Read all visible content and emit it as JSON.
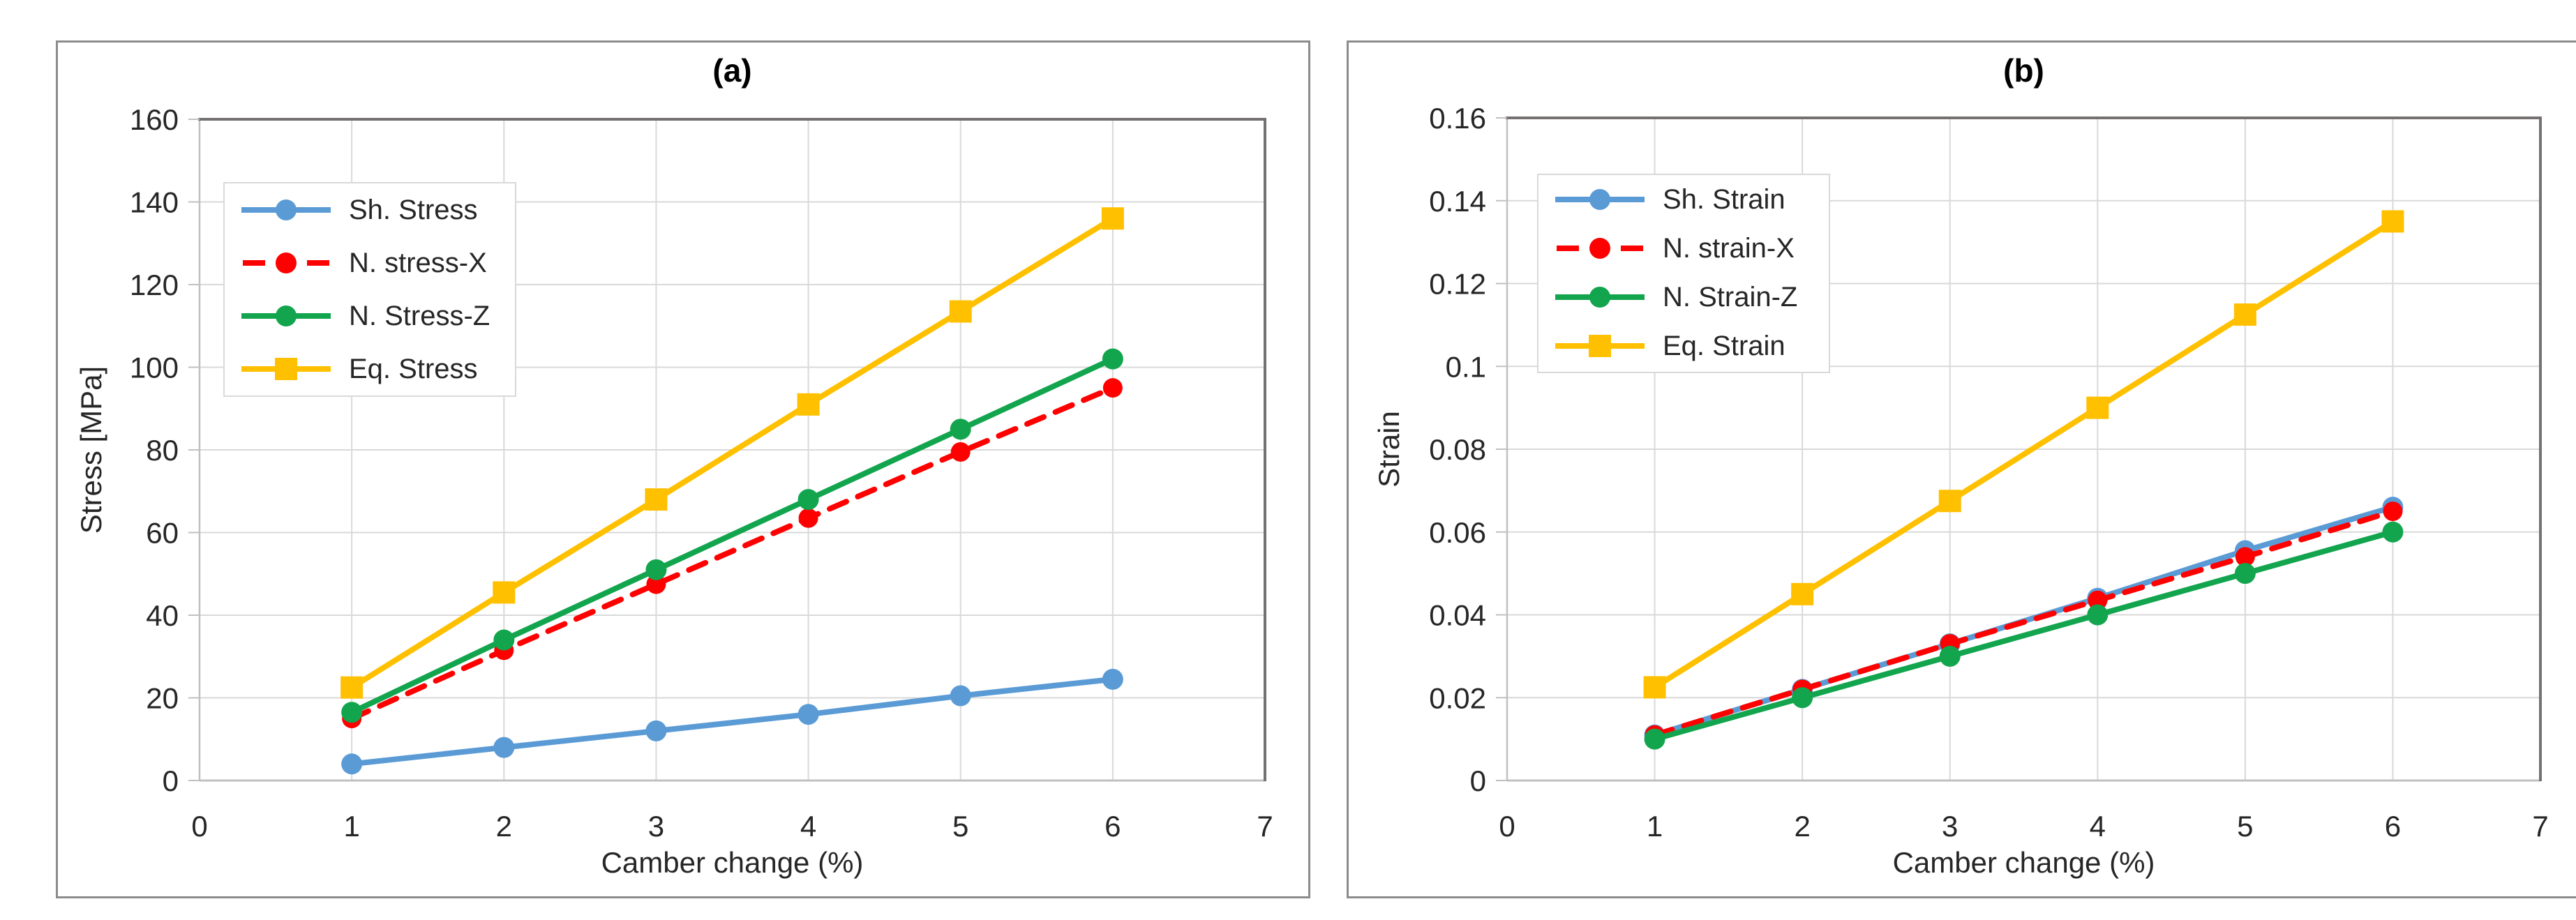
{
  "chart_data": [
    {
      "type": "line",
      "title": "(a)",
      "xlabel": "Camber change (%)",
      "ylabel": "Stress [MPa]",
      "xlim": [
        0,
        7
      ],
      "ylim": [
        0,
        160
      ],
      "x_ticks": [
        "0",
        "1",
        "2",
        "3",
        "4",
        "5",
        "6",
        "7"
      ],
      "y_ticks": [
        "0",
        "20",
        "40",
        "60",
        "80",
        "100",
        "120",
        "140",
        "160"
      ],
      "grid": true,
      "legend_position": "upper-left",
      "x": [
        1,
        2,
        3,
        4,
        5,
        6
      ],
      "series": [
        {
          "name": "Sh. Stress",
          "color": "#5B9BD5",
          "marker": "circle",
          "line": "solid",
          "values": [
            4,
            8,
            12,
            16,
            20.5,
            24.5
          ]
        },
        {
          "name": "N. stress-X",
          "color": "#FF0000",
          "marker": "circle",
          "line": "dashed",
          "values": [
            15,
            31.5,
            47.5,
            63.5,
            79.5,
            95
          ]
        },
        {
          "name": "N. Stress-Z",
          "color": "#12A54E",
          "marker": "circle",
          "line": "solid",
          "values": [
            16.5,
            34,
            51,
            68,
            85,
            102
          ]
        },
        {
          "name": "Eq. Stress",
          "color": "#FFC000",
          "marker": "square",
          "line": "solid",
          "values": [
            22.5,
            45.5,
            68,
            91,
            113.5,
            136
          ]
        }
      ]
    },
    {
      "type": "line",
      "title": "(b)",
      "xlabel": "Camber change (%)",
      "ylabel": "Strain",
      "xlim": [
        0,
        7
      ],
      "ylim": [
        0,
        0.16
      ],
      "x_ticks": [
        "0",
        "1",
        "2",
        "3",
        "4",
        "5",
        "6",
        "7"
      ],
      "y_ticks": [
        "0",
        "0.02",
        "0.04",
        "0.06",
        "0.08",
        "0.1",
        "0.12",
        "0.14",
        "0.16"
      ],
      "grid": true,
      "legend_position": "upper-left",
      "x": [
        1,
        2,
        3,
        4,
        5,
        6
      ],
      "series": [
        {
          "name": "Sh. Strain",
          "color": "#5B9BD5",
          "marker": "circle",
          "line": "solid",
          "values": [
            0.011,
            0.022,
            0.033,
            0.044,
            0.0555,
            0.066
          ]
        },
        {
          "name": "N. strain-X",
          "color": "#FF0000",
          "marker": "circle",
          "line": "dashed",
          "values": [
            0.011,
            0.022,
            0.033,
            0.0435,
            0.054,
            0.065
          ]
        },
        {
          "name": "N. Strain-Z",
          "color": "#12A54E",
          "marker": "circle",
          "line": "solid",
          "values": [
            0.01,
            0.02,
            0.03,
            0.04,
            0.05,
            0.06
          ]
        },
        {
          "name": "Eq. Strain",
          "color": "#FFC000",
          "marker": "square",
          "line": "solid",
          "values": [
            0.0225,
            0.045,
            0.0675,
            0.09,
            0.1125,
            0.135
          ]
        }
      ]
    }
  ],
  "style_colors": {
    "figure_border": "#8C8C8C",
    "plot_border_dark": "#767171",
    "axis_line": "#C0C0C0",
    "gridline": "#D9D9D9",
    "tick_text": "#262626"
  }
}
